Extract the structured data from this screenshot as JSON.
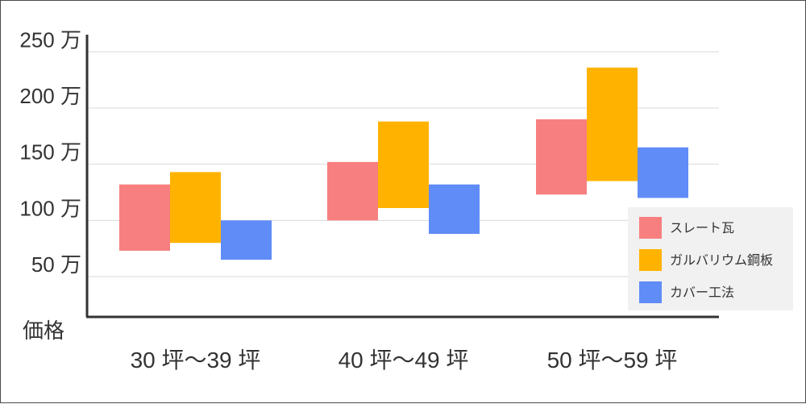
{
  "chart_data": {
    "type": "bar",
    "subtype": "floating-range",
    "title": "",
    "xlabel": "",
    "ylabel": "価格",
    "y_tick_labels": [
      "250 万",
      "200 万",
      "150 万",
      "100 万",
      "50 万"
    ],
    "y_ticks": [
      250,
      200,
      150,
      100,
      50
    ],
    "ylim": [
      25,
      265
    ],
    "grid": true,
    "legend_position": "bottom-right",
    "categories": [
      "30 坪～39 坪",
      "40 坪～49 坪",
      "50 坪～59 坪"
    ],
    "series": [
      {
        "name": "スレート瓦",
        "color": "#f87f7f",
        "ranges": [
          [
            73,
            132
          ],
          [
            100,
            152
          ],
          [
            123,
            190
          ]
        ]
      },
      {
        "name": "ガルバリウム鋼板",
        "color": "#ffb300",
        "ranges": [
          [
            80,
            143
          ],
          [
            111,
            188
          ],
          [
            135,
            236
          ]
        ]
      },
      {
        "name": "カバー工法",
        "color": "#5f8cf7",
        "ranges": [
          [
            65,
            100
          ],
          [
            88,
            132
          ],
          [
            120,
            165
          ]
        ]
      }
    ]
  }
}
